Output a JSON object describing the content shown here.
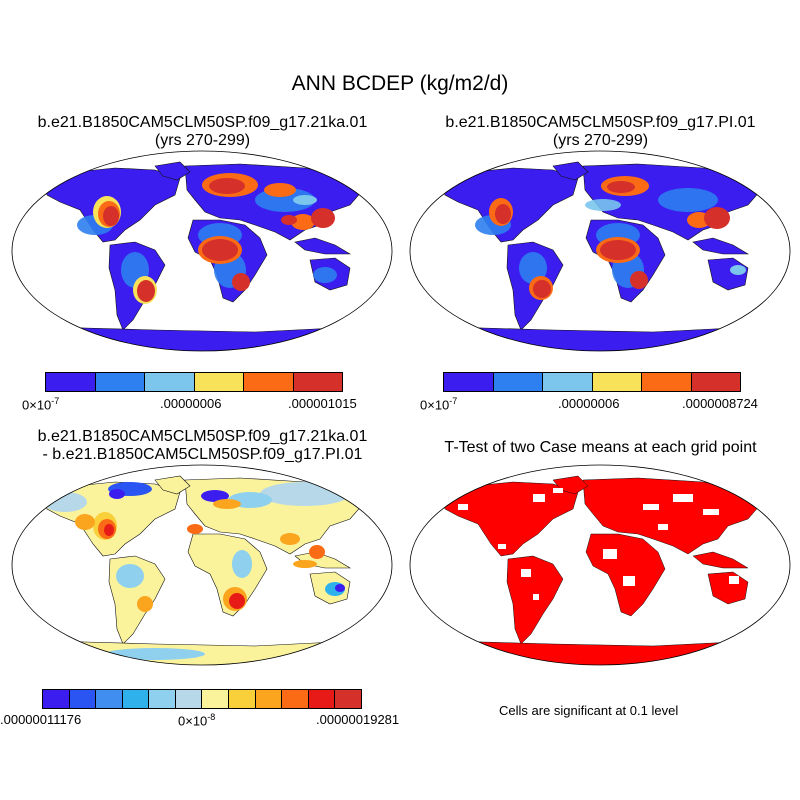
{
  "main_title": "ANN BCDEP (kg/m2/d)",
  "panels": [
    {
      "id": "case1",
      "title": "b.e21.B1850CAM5CLM50SP.f09_g17.21ka.01",
      "subtitle": "(yrs 270-299)",
      "colorbar": {
        "colors": [
          "#3b1df0",
          "#2e7ff0",
          "#7cc6ee",
          "#f7e25a",
          "#fb6a14",
          "#d6302a"
        ],
        "labels": {
          "left_base": "0×10",
          "left_exp": "-7",
          "mid": ".00000006",
          "right": ".000001015"
        }
      }
    },
    {
      "id": "case2",
      "title": "b.e21.B1850CAM5CLM50SP.f09_g17.PI.01",
      "subtitle": "(yrs 270-299)",
      "colorbar": {
        "colors": [
          "#3b1df0",
          "#2e7ff0",
          "#7cc6ee",
          "#f7e25a",
          "#fb6a14",
          "#d6302a"
        ],
        "labels": {
          "left_base": "0×10",
          "left_exp": "-7",
          "mid": ".00000006",
          "right": ".0000008724"
        }
      }
    },
    {
      "id": "diff",
      "title": "b.e21.B1850CAM5CLM50SP.f09_g17.21ka.01",
      "subtitle": "- b.e21.B1850CAM5CLM50SP.f09_g17.PI.01",
      "colorbar": {
        "colors": [
          "#3b1df0",
          "#2a55f2",
          "#3f8ef0",
          "#2fb2ec",
          "#8fd0ee",
          "#b7d8e8",
          "#fbf39c",
          "#f9cf3a",
          "#fba41e",
          "#fb6a14",
          "#e81a18",
          "#d6302a"
        ],
        "labels": {
          "left": ".00000011176",
          "mid_base": "0×10",
          "mid_exp": "-8",
          "right": ".00000019281"
        }
      }
    },
    {
      "id": "ttest",
      "title": "T-Test of two Case means at each grid point",
      "note": "Cells are significant at 0.1 level"
    }
  ]
}
